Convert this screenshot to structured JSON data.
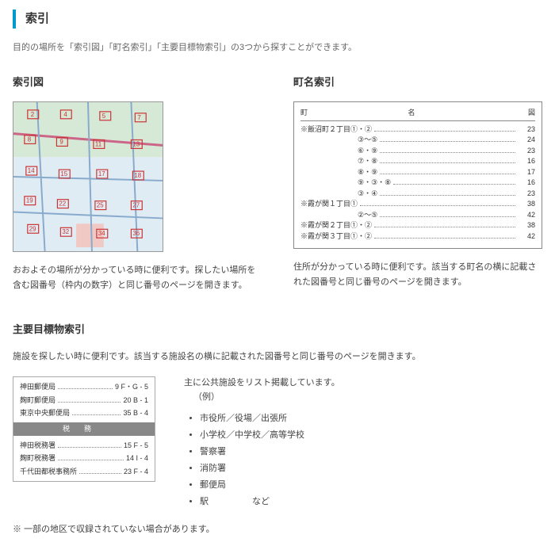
{
  "title": "索引",
  "intro": "目的の場所を「索引図」「町名索引」「主要目標物索引」の3つから探すことができます。",
  "sakuin": {
    "heading": "索引図",
    "desc": "おおよその場所が分かっている時に便利です。探したい場所を含む図番号（枠内の数字）と同じ番号のページを開きます。"
  },
  "choumei": {
    "heading": "町名索引",
    "hcol_chou": "町",
    "hcol_name": "名",
    "hcol_zu": "図",
    "rows": [
      {
        "name": "※飯沼町２丁目①・②",
        "page": "23",
        "indent": 0
      },
      {
        "name": "③～⑤",
        "page": "24",
        "indent": 1
      },
      {
        "name": "⑥・⑨",
        "page": "23",
        "indent": 1
      },
      {
        "name": "⑦・⑧",
        "page": "16",
        "indent": 1
      },
      {
        "name": "⑧・⑨",
        "page": "17",
        "indent": 1
      },
      {
        "name": "⑨・③・⑧",
        "page": "16",
        "indent": 1
      },
      {
        "name": "③・④",
        "page": "23",
        "indent": 1
      },
      {
        "name": "※霞が関１丁目①",
        "page": "38",
        "indent": 0
      },
      {
        "name": "②～⑤",
        "page": "42",
        "indent": 1
      },
      {
        "name": "※霞が関２丁目①・②",
        "page": "38",
        "indent": 0
      },
      {
        "name": "※霞が関３丁目①・②",
        "page": "42",
        "indent": 0
      }
    ],
    "desc": "住所が分かっている時に便利です。該当する町名の横に記載された図番号と同じ番号のページを開きます。"
  },
  "landmark": {
    "heading": "主要目標物索引",
    "intro": "施設を探したい時に便利です。該当する施設名の横に記載された図番号と同じ番号のページを開きます。",
    "left_rows_a": [
      {
        "name": "神田郵便局",
        "code": "9  F・G - 5"
      },
      {
        "name": "麹町郵便局",
        "code": "20  B - 1"
      },
      {
        "name": "東京中央郵便局",
        "code": "35  B - 4"
      }
    ],
    "bar": "税務",
    "left_rows_b": [
      {
        "name": "神田税務署",
        "code": "15  F - 5"
      },
      {
        "name": "麹町税務署",
        "code": "14  I - 4"
      },
      {
        "name": "千代田都税事務所",
        "code": "23  F - 4"
      }
    ],
    "right_lead": "主に公共施設をリスト掲載しています。",
    "right_ex": "（例）",
    "right_items": [
      "市役所／役場／出張所",
      "小学校／中学校／高等学校",
      "警察署",
      "消防署",
      "郵便局",
      "駅　　　　　など"
    ]
  },
  "footnote": "※ 一部の地区で収録されていない場合があります。"
}
